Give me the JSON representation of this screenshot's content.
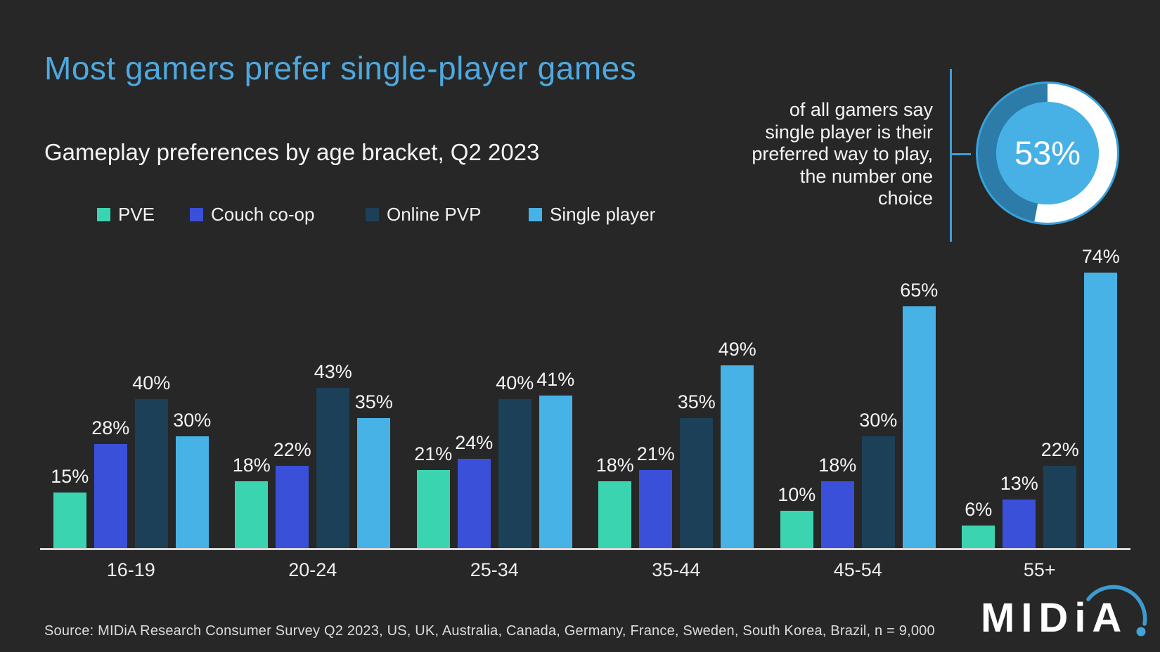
{
  "header": {
    "title": "Most gamers prefer single-player games",
    "subtitle": "Gameplay preferences by age bracket, Q2 2023"
  },
  "callout": {
    "lines": [
      "of all gamers say",
      "single player is their",
      "preferred way to play,",
      "the number one",
      "choice"
    ],
    "value_label": "53%"
  },
  "chart_data": {
    "type": "bar",
    "title": "Most gamers prefer single-player games",
    "subtitle": "Gameplay preferences by age bracket, Q2 2023",
    "categories": [
      "16-19",
      "20-24",
      "25-34",
      "35-44",
      "45-54",
      "55+"
    ],
    "series": [
      {
        "name": "PVE",
        "color": "#3bd4b0",
        "values": [
          15,
          18,
          21,
          18,
          10,
          6
        ]
      },
      {
        "name": "Couch co-op",
        "color": "#3a50d9",
        "values": [
          28,
          22,
          24,
          21,
          18,
          13
        ]
      },
      {
        "name": "Online PVP",
        "color": "#1c4057",
        "values": [
          40,
          43,
          40,
          35,
          30,
          22
        ]
      },
      {
        "name": "Single player",
        "color": "#47b2e6",
        "values": [
          30,
          35,
          41,
          49,
          65,
          74
        ]
      }
    ],
    "xlabel": "",
    "ylabel": "",
    "ylim": [
      0,
      80
    ],
    "value_suffix": "%",
    "grid": false,
    "legend_position": "top-left",
    "donut": {
      "value": 53,
      "label": "53%",
      "description": "of all gamers say single player is their preferred way to play, the number one choice"
    }
  },
  "footer": {
    "source": "Source: MIDiA Research Consumer Survey Q2 2023, US, UK, Australia, Canada, Germany, France, Sweden, South Korea, Brazil, n = 9,000",
    "logo_text": "MIDiA"
  },
  "colors": {
    "background": "#272727",
    "title_blue": "#4da9e0",
    "text": "#f4f4f4",
    "axis_line": "#d9d9d9",
    "accent_blue": "#3e9ed6",
    "donut_disc": "#38a1d9",
    "donut_ring_remainder": "#2d7ba8",
    "donut_center": "#47b1e6",
    "donut_arc": "#ffffff"
  }
}
